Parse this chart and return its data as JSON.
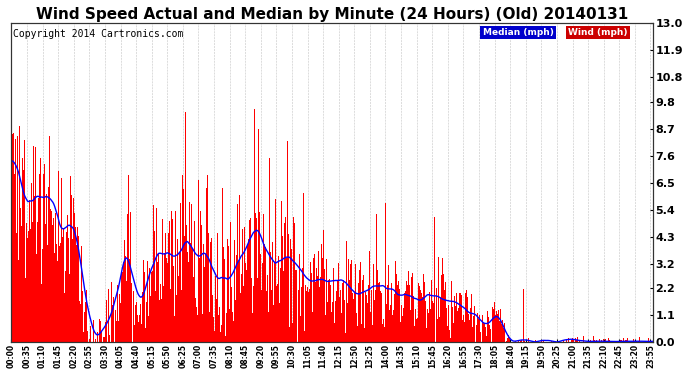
{
  "title": "Wind Speed Actual and Median by Minute (24 Hours) (Old) 20140131",
  "copyright": "Copyright 2014 Cartronics.com",
  "ylabel_right_ticks": [
    0.0,
    1.1,
    2.2,
    3.2,
    4.3,
    5.4,
    6.5,
    7.6,
    8.7,
    9.8,
    10.8,
    11.9,
    13.0
  ],
  "ymax": 13.0,
  "ymin": 0.0,
  "bar_color": "#ff0000",
  "line_color": "#0000ff",
  "background_color": "#ffffff",
  "grid_color": "#aaaaaa",
  "title_fontsize": 11,
  "copyright_fontsize": 7,
  "n_minutes": 1440,
  "legend_median_bg": "#0000cc",
  "legend_wind_bg": "#cc0000"
}
